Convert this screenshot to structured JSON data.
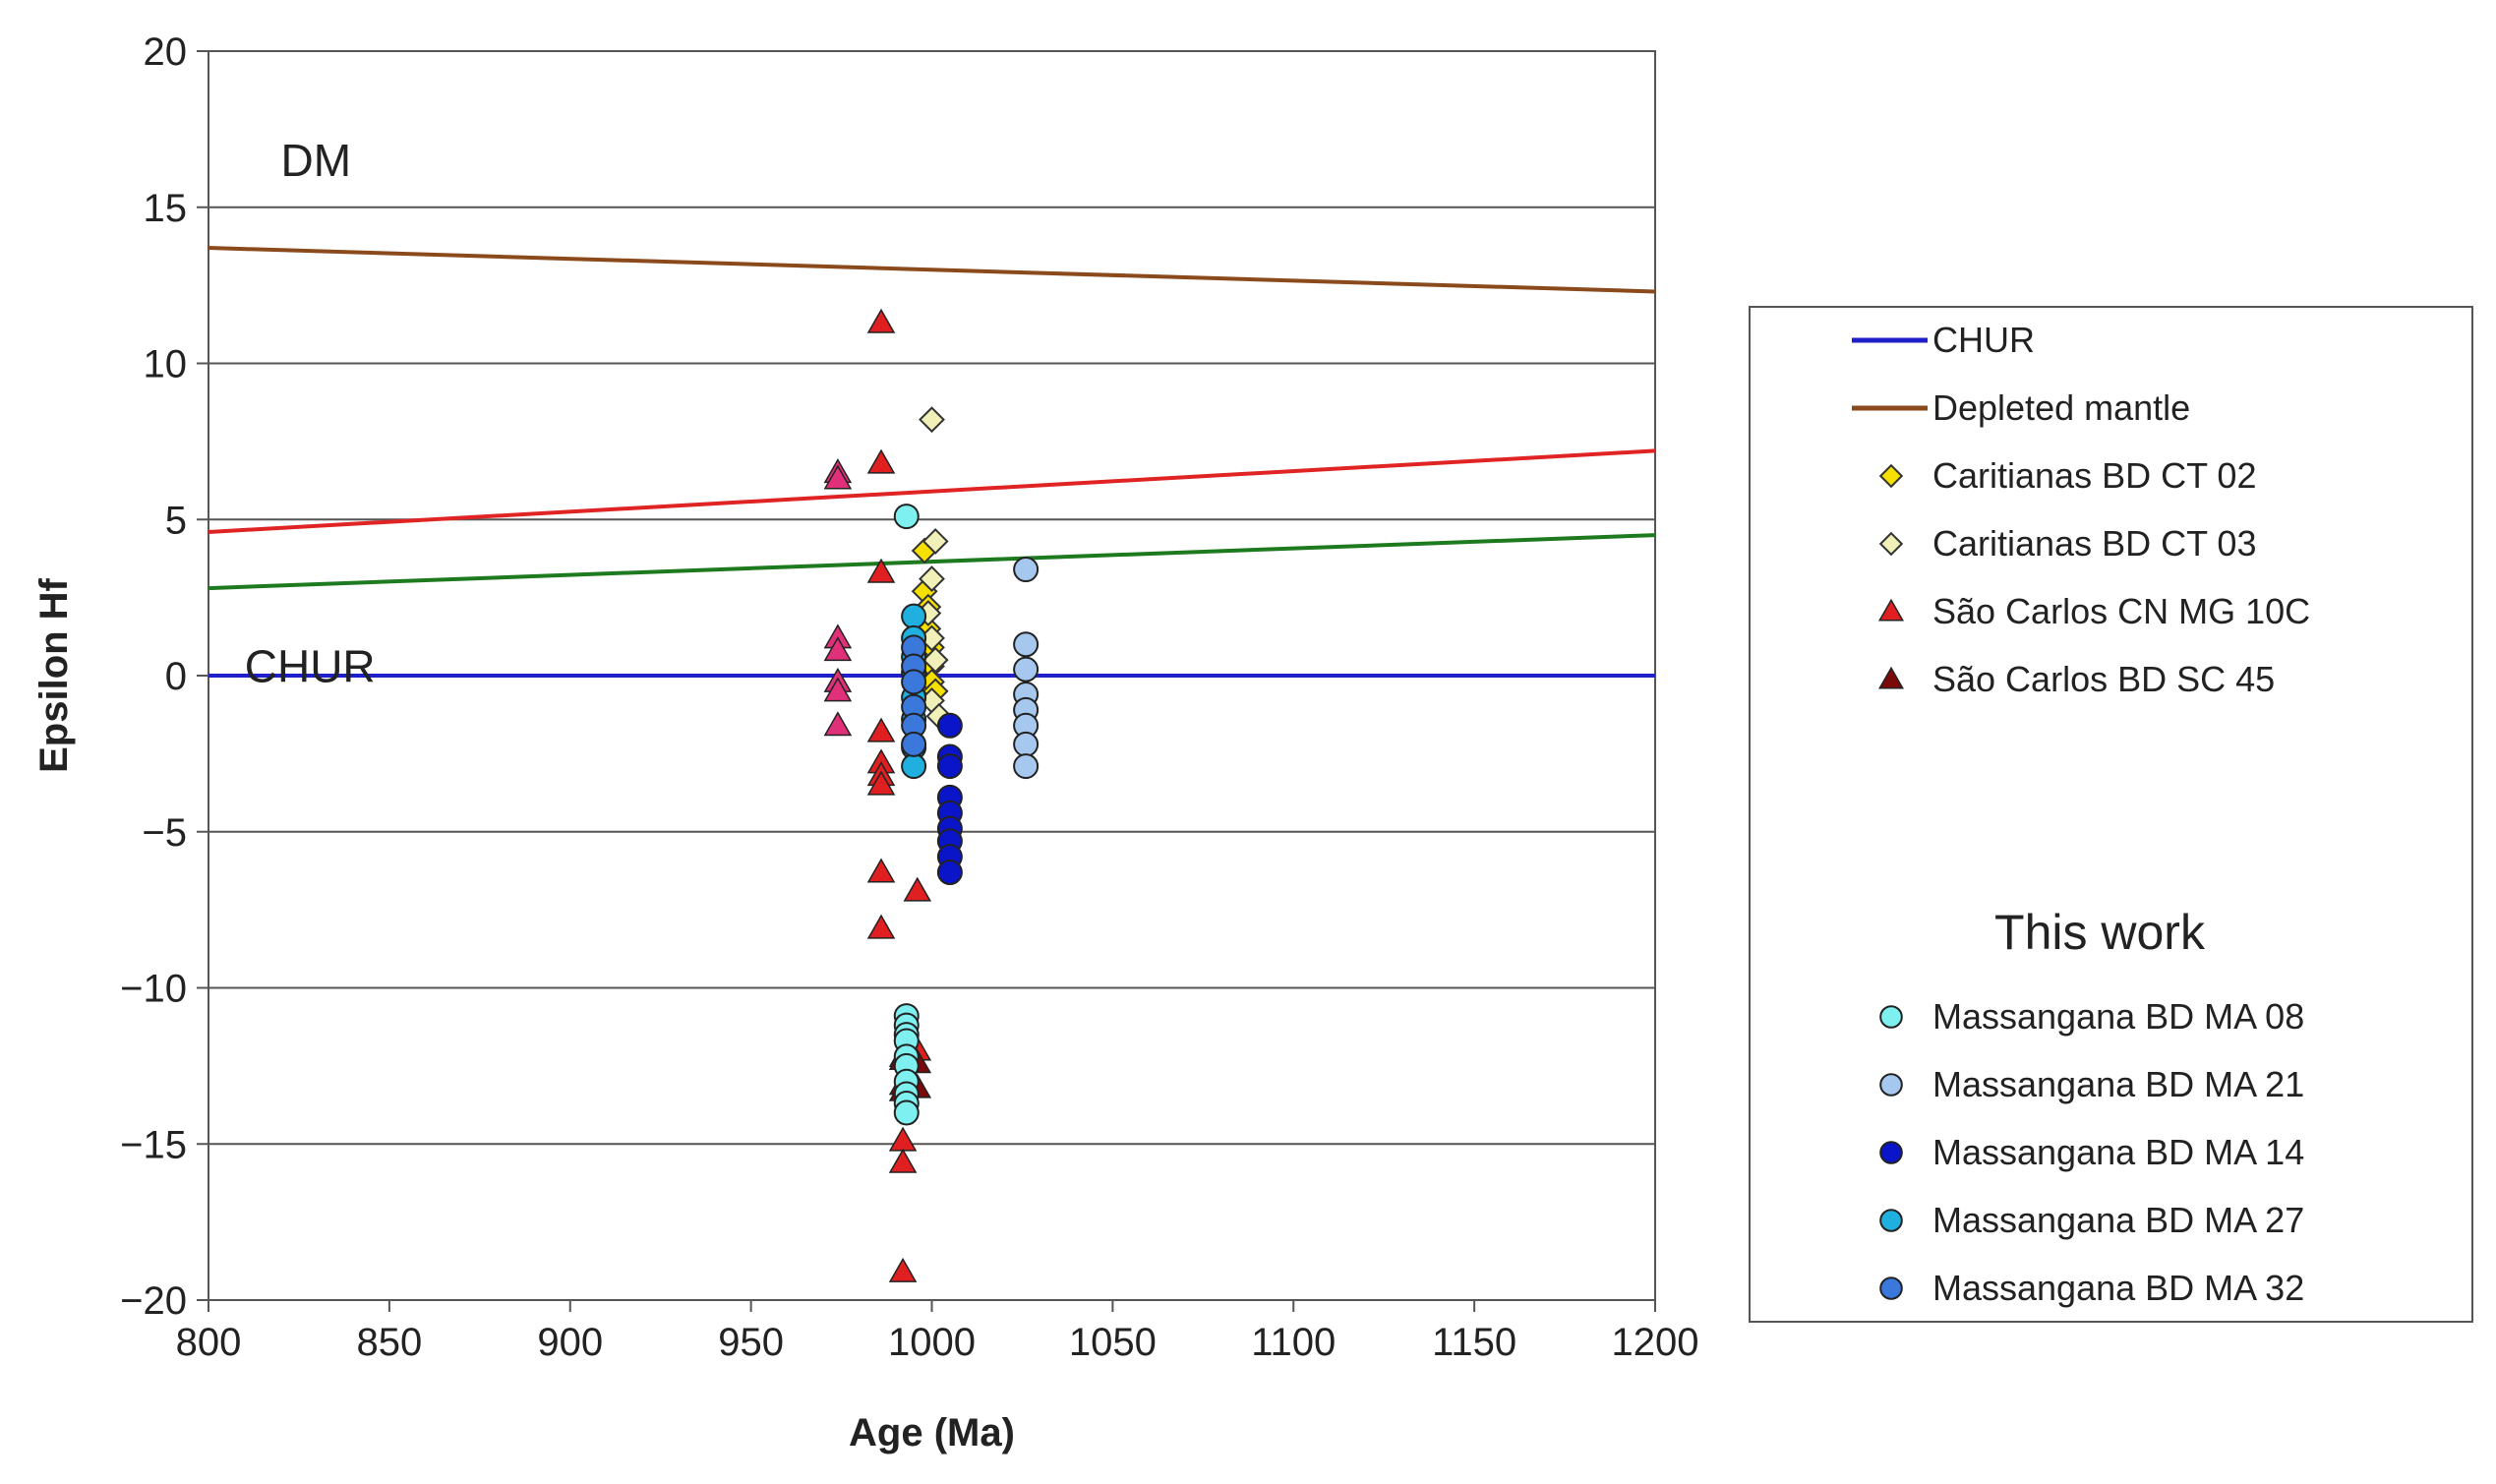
{
  "chart_data": {
    "type": "scatter",
    "title": "",
    "xlabel": "Age (Ma)",
    "ylabel": "Epsilon Hf",
    "xlim": [
      800,
      1200
    ],
    "ylim": [
      -20,
      20
    ],
    "xticks": [
      800,
      850,
      900,
      950,
      1000,
      1050,
      1100,
      1150,
      1200
    ],
    "yticks": [
      20,
      15,
      10,
      5,
      0,
      -5,
      -10,
      -15,
      -20
    ],
    "ytick_labels": [
      "20",
      "15",
      "10",
      "5",
      "0",
      "−5",
      "−10",
      "−15",
      "−20"
    ],
    "grid": "horizontal",
    "annotations": [
      {
        "text": "DM",
        "x": 820,
        "y": 16.5
      },
      {
        "text": "CHUR",
        "x": 810,
        "y": 0.3
      }
    ],
    "lines": [
      {
        "name": "CHUR",
        "color": "#1f1fcc",
        "x": [
          800,
          1200
        ],
        "y": [
          0,
          0
        ],
        "in_legend": true
      },
      {
        "name": "Depleted mantle",
        "color": "#8b4a1c",
        "x": [
          800,
          1200
        ],
        "y": [
          13.7,
          12.3
        ],
        "in_legend": true
      },
      {
        "name": "",
        "color": "#e02424",
        "x": [
          800,
          1200
        ],
        "y": [
          4.6,
          7.2
        ],
        "in_legend": false
      },
      {
        "name": "",
        "color": "#1e7a1e",
        "x": [
          800,
          1200
        ],
        "y": [
          2.8,
          4.5
        ],
        "in_legend": false
      }
    ],
    "series": [
      {
        "name": "Caritianas BD CT 02",
        "marker": "diamond",
        "color": "#f5e000",
        "in_legend": true,
        "x": [
          998,
          998,
          999,
          999,
          1000,
          1000,
          1000,
          1001
        ],
        "y": [
          4.0,
          2.7,
          2.2,
          1.5,
          0.9,
          0.3,
          -0.2,
          -0.5
        ]
      },
      {
        "name": "Caritianas BD CT 03",
        "marker": "diamond",
        "color": "#f0f0b8",
        "in_legend": true,
        "x": [
          1000,
          1001,
          1000,
          999,
          1000,
          1001,
          1000,
          1002
        ],
        "y": [
          8.2,
          4.3,
          3.1,
          2.0,
          1.2,
          0.5,
          -0.8,
          -1.3
        ]
      },
      {
        "name": "São Carlos CN MG 10C",
        "marker": "triangle",
        "color": "#e02020",
        "in_legend": true,
        "x": [
          986,
          986,
          986,
          986,
          986,
          986,
          986,
          986,
          986,
          996,
          992,
          992,
          992,
          992,
          996
        ],
        "y": [
          11.3,
          6.8,
          3.3,
          -1.8,
          -2.8,
          -3.2,
          -3.5,
          -6.3,
          -8.1,
          -6.9,
          -14.9,
          -15.6,
          -19.1,
          -12.2,
          -12.0
        ]
      },
      {
        "name": "São Carlos BD SC 45",
        "marker": "triangle",
        "color": "#7a0a0a",
        "in_legend": true,
        "x": [
          992,
          996,
          992,
          996,
          992
        ],
        "y": [
          -12.3,
          -12.4,
          -13.1,
          -13.2,
          -13.3
        ]
      },
      {
        "name": "",
        "marker": "triangle",
        "color": "#e0307a",
        "in_legend": false,
        "x": [
          974,
          974,
          974,
          974,
          974,
          974,
          974
        ],
        "y": [
          6.5,
          6.3,
          1.2,
          0.8,
          -0.2,
          -0.5,
          -1.6
        ]
      },
      {
        "name": "Massangana BD MA 08",
        "marker": "circle",
        "color": "#7ff0f0",
        "in_legend": true,
        "x": [
          993,
          993,
          993,
          993,
          993,
          993,
          993,
          993,
          993,
          993,
          993
        ],
        "y": [
          5.1,
          -10.9,
          -11.2,
          -11.5,
          -11.7,
          -12.2,
          -12.5,
          -13.0,
          -13.4,
          -13.7,
          -14.0
        ]
      },
      {
        "name": "Massangana BD MA 21",
        "marker": "circle",
        "color": "#a6c8ee",
        "in_legend": true,
        "x": [
          1026,
          1026,
          1026,
          1026,
          1026,
          1026,
          1026,
          1026
        ],
        "y": [
          3.4,
          1.0,
          0.2,
          -0.6,
          -1.1,
          -1.6,
          -2.2,
          -2.9
        ]
      },
      {
        "name": "Massangana BD MA 14",
        "marker": "circle",
        "color": "#0a14c8",
        "in_legend": true,
        "x": [
          1005,
          1005,
          1005,
          1005,
          1005,
          1005,
          1005,
          1005,
          1005
        ],
        "y": [
          -1.6,
          -2.6,
          -2.9,
          -3.9,
          -4.4,
          -4.9,
          -5.3,
          -5.8,
          -6.3
        ]
      },
      {
        "name": "Massangana BD MA 27",
        "marker": "circle",
        "color": "#20b0e0",
        "in_legend": true,
        "x": [
          995,
          995,
          995,
          995,
          995,
          995,
          995,
          995
        ],
        "y": [
          1.9,
          1.2,
          0.6,
          0.1,
          -0.7,
          -1.4,
          -2.3,
          -2.9
        ]
      },
      {
        "name": "Massangana BD MA 32",
        "marker": "circle",
        "color": "#3a78dc",
        "in_legend": true,
        "x": [
          995,
          995,
          995,
          995,
          995,
          995
        ],
        "y": [
          0.9,
          0.3,
          -0.2,
          -1.0,
          -1.6,
          -2.2
        ]
      }
    ],
    "legend": {
      "position": "right",
      "heading": "This work"
    }
  }
}
